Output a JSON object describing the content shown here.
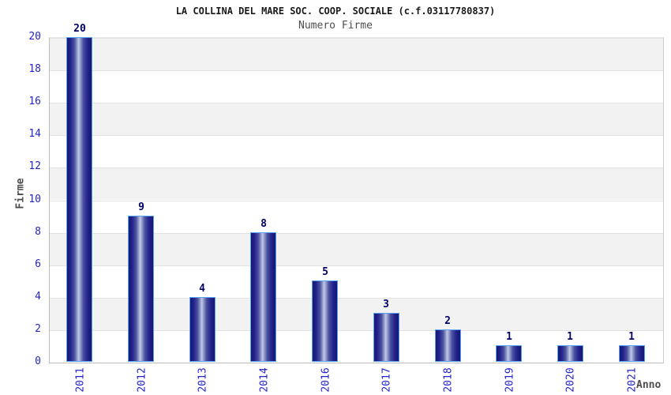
{
  "chart_data": {
    "type": "bar",
    "title": "LA COLLINA DEL MARE SOC. COOP. SOCIALE (c.f.03117780837)",
    "subtitle": "Numero Firme",
    "xlabel": "Anno",
    "ylabel": "Firme",
    "categories": [
      "2011",
      "2012",
      "2013",
      "2014",
      "2016",
      "2017",
      "2018",
      "2019",
      "2020",
      "2021"
    ],
    "values": [
      20,
      9,
      4,
      8,
      5,
      3,
      2,
      1,
      1,
      1
    ],
    "value_labels": [
      "20",
      "9",
      "4",
      "8",
      "5",
      "3",
      "2",
      "1",
      "1",
      "1"
    ],
    "ylim": [
      0,
      20
    ],
    "ytick_step": 2,
    "ytick_labels": [
      "0",
      "2",
      "4",
      "6",
      "8",
      "10",
      "12",
      "14",
      "16",
      "18",
      "20"
    ],
    "legend": "none",
    "grid": "horizontal-bands",
    "background_bands": "alternating 2-unit bands, gray on 2-4, 6-8, 10-12, 14-16, 18-20",
    "bar_orientation": "vertical",
    "xtick_rotation_deg": 90
  },
  "colors": {
    "bar_border": "#58a2f0",
    "bar_dark": "#171775",
    "bar_mid": "#22228a",
    "bar_body": "#4a529f",
    "bar_glow": "#9ba4d0",
    "bar_light": "#c3c9e6",
    "tick_label": "#2424cc",
    "value_label": "#000066",
    "axis_title": "#4d4d4d",
    "title_color": "#1a1a1a",
    "subtitle_color": "#4d4d4d",
    "stripe": "#f2f2f2",
    "gridline": "#e2e2e2",
    "axis_line": "#bdbdbd",
    "background": "#ffffff"
  }
}
